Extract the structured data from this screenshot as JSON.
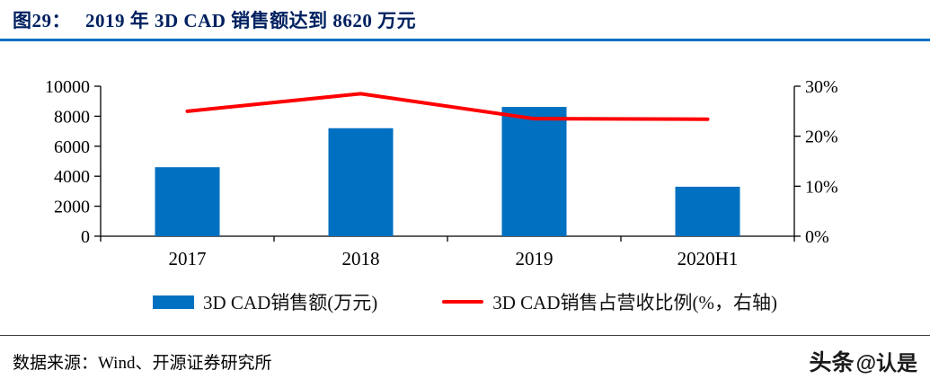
{
  "header": {
    "figure_label": "图29：",
    "title": "2019 年 3D CAD 销售额达到 8620 万元"
  },
  "colors": {
    "title": "#002060",
    "rule": "#0070C0",
    "bar": "#0070C0",
    "line": "#FF0000"
  },
  "chart_data": {
    "type": "bar",
    "subtype": "bar+line combo, dual axis",
    "title": "2019 年 3D CAD 销售额达到 8620 万元",
    "categories": [
      "2017",
      "2018",
      "2019",
      "2020H1"
    ],
    "series": [
      {
        "name": "3D CAD销售额(万元)",
        "type": "bar",
        "axis": "left",
        "color": "#0070C0",
        "values": [
          4600,
          7200,
          8620,
          3300
        ]
      },
      {
        "name": "3D CAD销售占营收比例(%，右轴)",
        "type": "line",
        "axis": "right",
        "color": "#FF0000",
        "values": [
          25.0,
          28.5,
          23.5,
          23.4
        ]
      }
    ],
    "left_axis": {
      "min": 0,
      "max": 10000,
      "step": 2000,
      "ticks": [
        "0",
        "2000",
        "4000",
        "6000",
        "8000",
        "10000"
      ]
    },
    "right_axis": {
      "min": 0,
      "max": 30,
      "step": 10,
      "ticks": [
        "0%",
        "10%",
        "20%",
        "30%"
      ]
    },
    "grid": false,
    "legend_position": "bottom"
  },
  "footer": {
    "source": "数据来源：Wind、开源证券研究所",
    "watermark_brand": "头条",
    "watermark_user": "@认是"
  }
}
